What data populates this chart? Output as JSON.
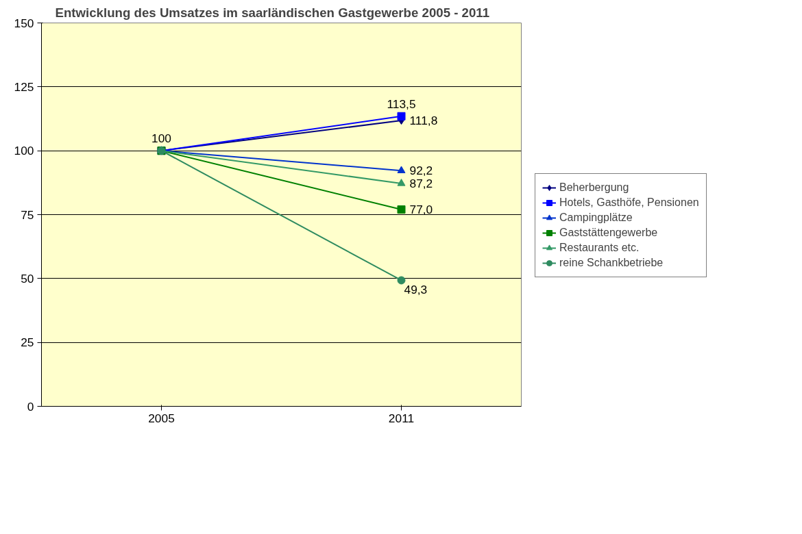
{
  "chart_data": {
    "type": "line",
    "title": "Entwicklung des Umsatzes im saarländischen Gastgewerbe 2005 - 2011",
    "categories": [
      "2005",
      "2011"
    ],
    "ylim": [
      0,
      150
    ],
    "yticks": [
      0,
      25,
      50,
      75,
      100,
      125,
      150
    ],
    "grid": "y",
    "legend": "right",
    "series": [
      {
        "name": "Beherbergung",
        "color": "#000080",
        "marker": "diamond",
        "values": [
          100,
          111.8
        ],
        "value_labels": [
          null,
          "111,8"
        ]
      },
      {
        "name": "Hotels, Gasthöfe, Pensionen",
        "color": "#0000ff",
        "marker": "square",
        "values": [
          100,
          113.5
        ],
        "value_labels": [
          null,
          "113,5"
        ]
      },
      {
        "name": "Campingplätze",
        "color": "#0033cc",
        "marker": "triangle",
        "values": [
          100,
          92.2
        ],
        "value_labels": [
          null,
          "92,2"
        ]
      },
      {
        "name": "Gaststättengewerbe",
        "color": "#008000",
        "marker": "square",
        "values": [
          100,
          77.0
        ],
        "value_labels": [
          "100",
          "77,0"
        ]
      },
      {
        "name": "Restaurants etc.",
        "color": "#339966",
        "marker": "triangle",
        "values": [
          100,
          87.2
        ],
        "value_labels": [
          null,
          "87,2"
        ]
      },
      {
        "name": "reine Schankbetriebe",
        "color": "#2e8b60",
        "marker": "circle",
        "values": [
          100,
          49.3
        ],
        "value_labels": [
          null,
          "49,3"
        ]
      }
    ]
  }
}
